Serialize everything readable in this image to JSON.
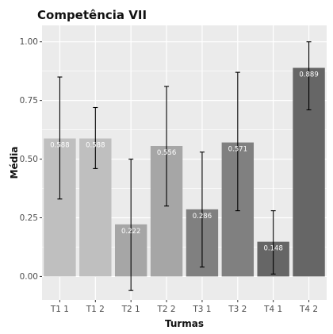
{
  "chart_data": {
    "type": "bar",
    "title": "Competência VII",
    "xlabel": "Turmas",
    "ylabel": "Média",
    "categories": [
      "T1 1",
      "T1 2",
      "T2 1",
      "T2 2",
      "T3 1",
      "T3 2",
      "T4 1",
      "T4 2"
    ],
    "values": [
      0.588,
      0.588,
      0.222,
      0.556,
      0.286,
      0.571,
      0.148,
      0.889
    ],
    "value_labels": [
      "0.588",
      "0.588",
      "0.222",
      "0.556",
      "0.286",
      "0.571",
      "0.148",
      "0.889"
    ],
    "error_bars": [
      {
        "low": 0.33,
        "high": 0.85
      },
      {
        "low": 0.46,
        "high": 0.72
      },
      {
        "low": -0.06,
        "high": 0.5
      },
      {
        "low": 0.3,
        "high": 0.81
      },
      {
        "low": 0.04,
        "high": 0.53
      },
      {
        "low": 0.28,
        "high": 0.87
      },
      {
        "low": 0.01,
        "high": 0.28
      },
      {
        "low": 0.71,
        "high": 1.0
      }
    ],
    "bar_colors": [
      "#bfbfbf",
      "#bfbfbf",
      "#a6a6a6",
      "#a6a6a6",
      "#808080",
      "#808080",
      "#666666",
      "#666666"
    ],
    "ylim": [
      -0.1,
      1.07
    ],
    "yticks": [
      0,
      0.25,
      0.5,
      0.75,
      1.0
    ],
    "ytick_labels": [
      "0.00",
      "0.25",
      "0.50",
      "0.75",
      "1.00"
    ],
    "grid": true,
    "legend": "none",
    "panel_background": "#ebebeb",
    "grid_color": "#ffffff"
  }
}
